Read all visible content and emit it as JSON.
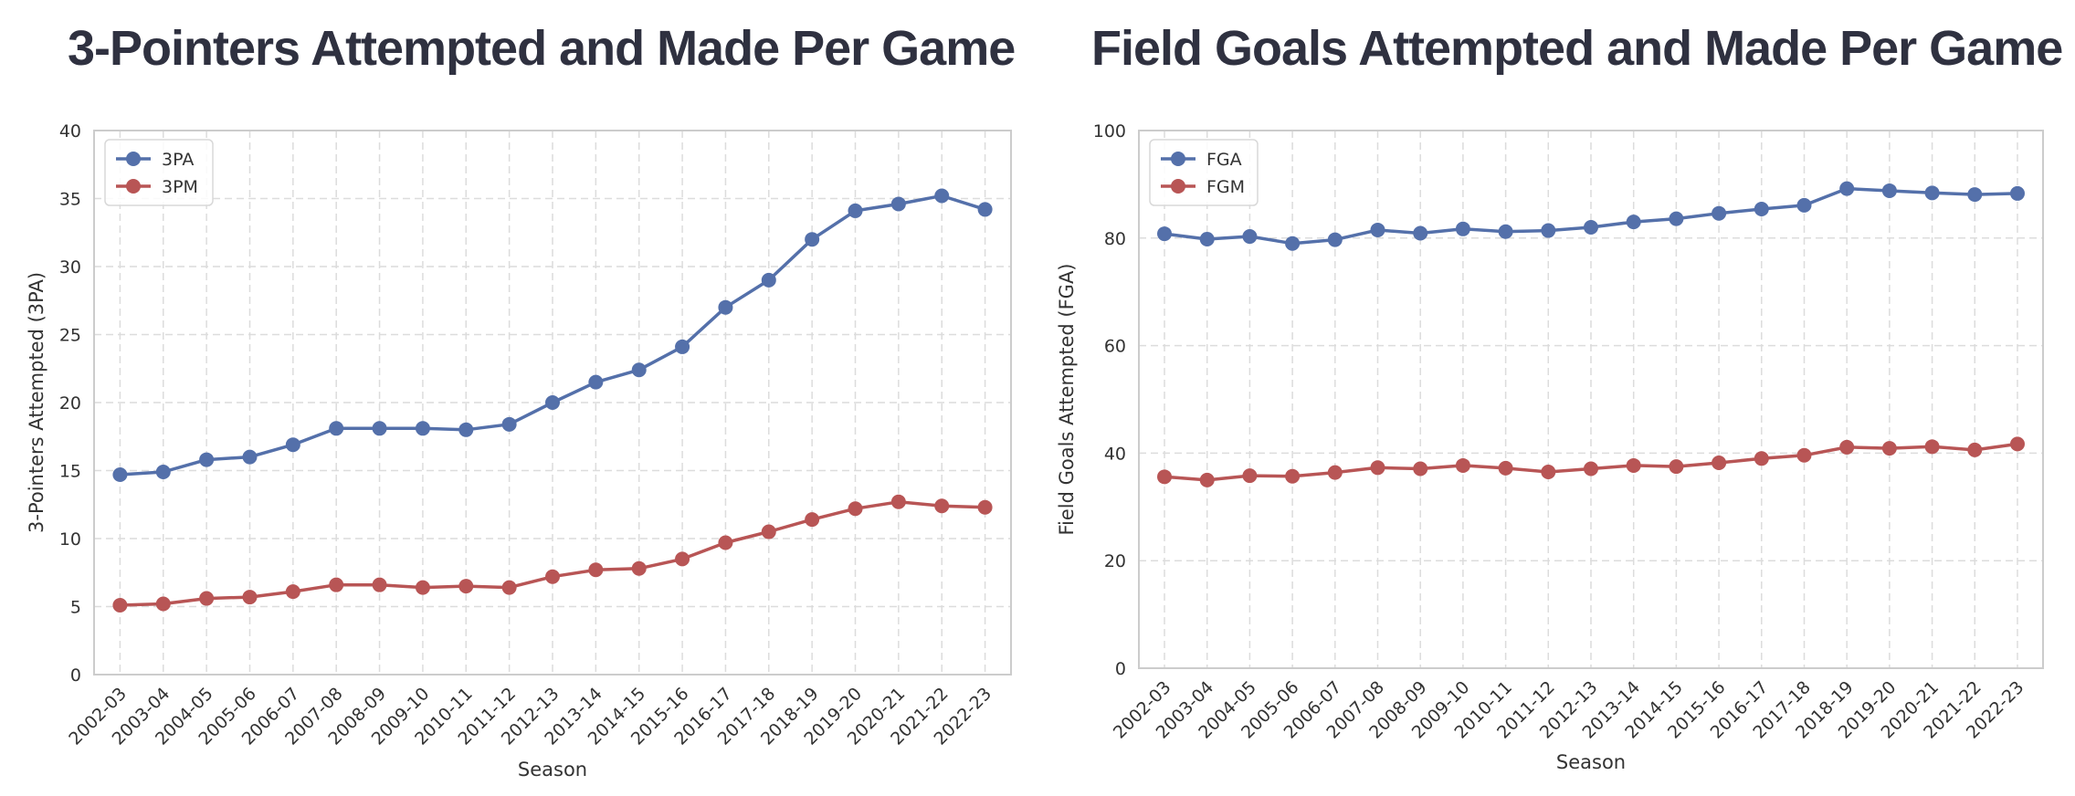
{
  "chart_data": [
    {
      "type": "line",
      "title": "3-Pointers Attempted and Made Per Game",
      "xlabel": "Season",
      "ylabel": "3-Pointers Attempted (3PA)",
      "ylim": [
        0,
        40
      ],
      "yticks": [
        0,
        5,
        10,
        15,
        20,
        25,
        30,
        35,
        40
      ],
      "grid": true,
      "legend_position": "top-left",
      "categories": [
        "2002-03",
        "2003-04",
        "2004-05",
        "2005-06",
        "2006-07",
        "2007-08",
        "2008-09",
        "2009-10",
        "2010-11",
        "2011-12",
        "2012-13",
        "2013-14",
        "2014-15",
        "2015-16",
        "2016-17",
        "2017-18",
        "2018-19",
        "2019-20",
        "2020-21",
        "2021-22",
        "2022-23"
      ],
      "series": [
        {
          "name": "3PA",
          "color": "#5470aa",
          "values": [
            14.7,
            14.9,
            15.8,
            16.0,
            16.9,
            18.1,
            18.1,
            18.1,
            18.0,
            18.4,
            20.0,
            21.5,
            22.4,
            24.1,
            27.0,
            29.0,
            32.0,
            34.1,
            34.6,
            35.2,
            34.2
          ]
        },
        {
          "name": "3PM",
          "color": "#b85555",
          "values": [
            5.1,
            5.2,
            5.6,
            5.7,
            6.1,
            6.6,
            6.6,
            6.4,
            6.5,
            6.4,
            7.2,
            7.7,
            7.8,
            8.5,
            9.7,
            10.5,
            11.4,
            12.2,
            12.7,
            12.4,
            12.3
          ]
        }
      ]
    },
    {
      "type": "line",
      "title": "Field Goals Attempted and Made Per Game",
      "xlabel": "Season",
      "ylabel": "Field Goals Attempted (FGA)",
      "ylim": [
        0,
        100
      ],
      "yticks": [
        0,
        20,
        40,
        60,
        80,
        100
      ],
      "grid": true,
      "legend_position": "top-left",
      "categories": [
        "2002-03",
        "2003-04",
        "2004-05",
        "2005-06",
        "2006-07",
        "2007-08",
        "2008-09",
        "2009-10",
        "2010-11",
        "2011-12",
        "2012-13",
        "2013-14",
        "2014-15",
        "2015-16",
        "2016-17",
        "2017-18",
        "2018-19",
        "2019-20",
        "2020-21",
        "2021-22",
        "2022-23"
      ],
      "series": [
        {
          "name": "FGA",
          "color": "#5470aa",
          "values": [
            80.8,
            79.8,
            80.3,
            79.0,
            79.7,
            81.5,
            80.9,
            81.7,
            81.2,
            81.4,
            82.0,
            83.0,
            83.6,
            84.6,
            85.4,
            86.1,
            89.2,
            88.8,
            88.4,
            88.1,
            88.3
          ]
        },
        {
          "name": "FGM",
          "color": "#b85555",
          "values": [
            35.6,
            35.0,
            35.8,
            35.7,
            36.4,
            37.3,
            37.1,
            37.7,
            37.2,
            36.5,
            37.1,
            37.7,
            37.5,
            38.2,
            39.0,
            39.6,
            41.1,
            40.9,
            41.2,
            40.6,
            41.7
          ]
        }
      ]
    }
  ]
}
